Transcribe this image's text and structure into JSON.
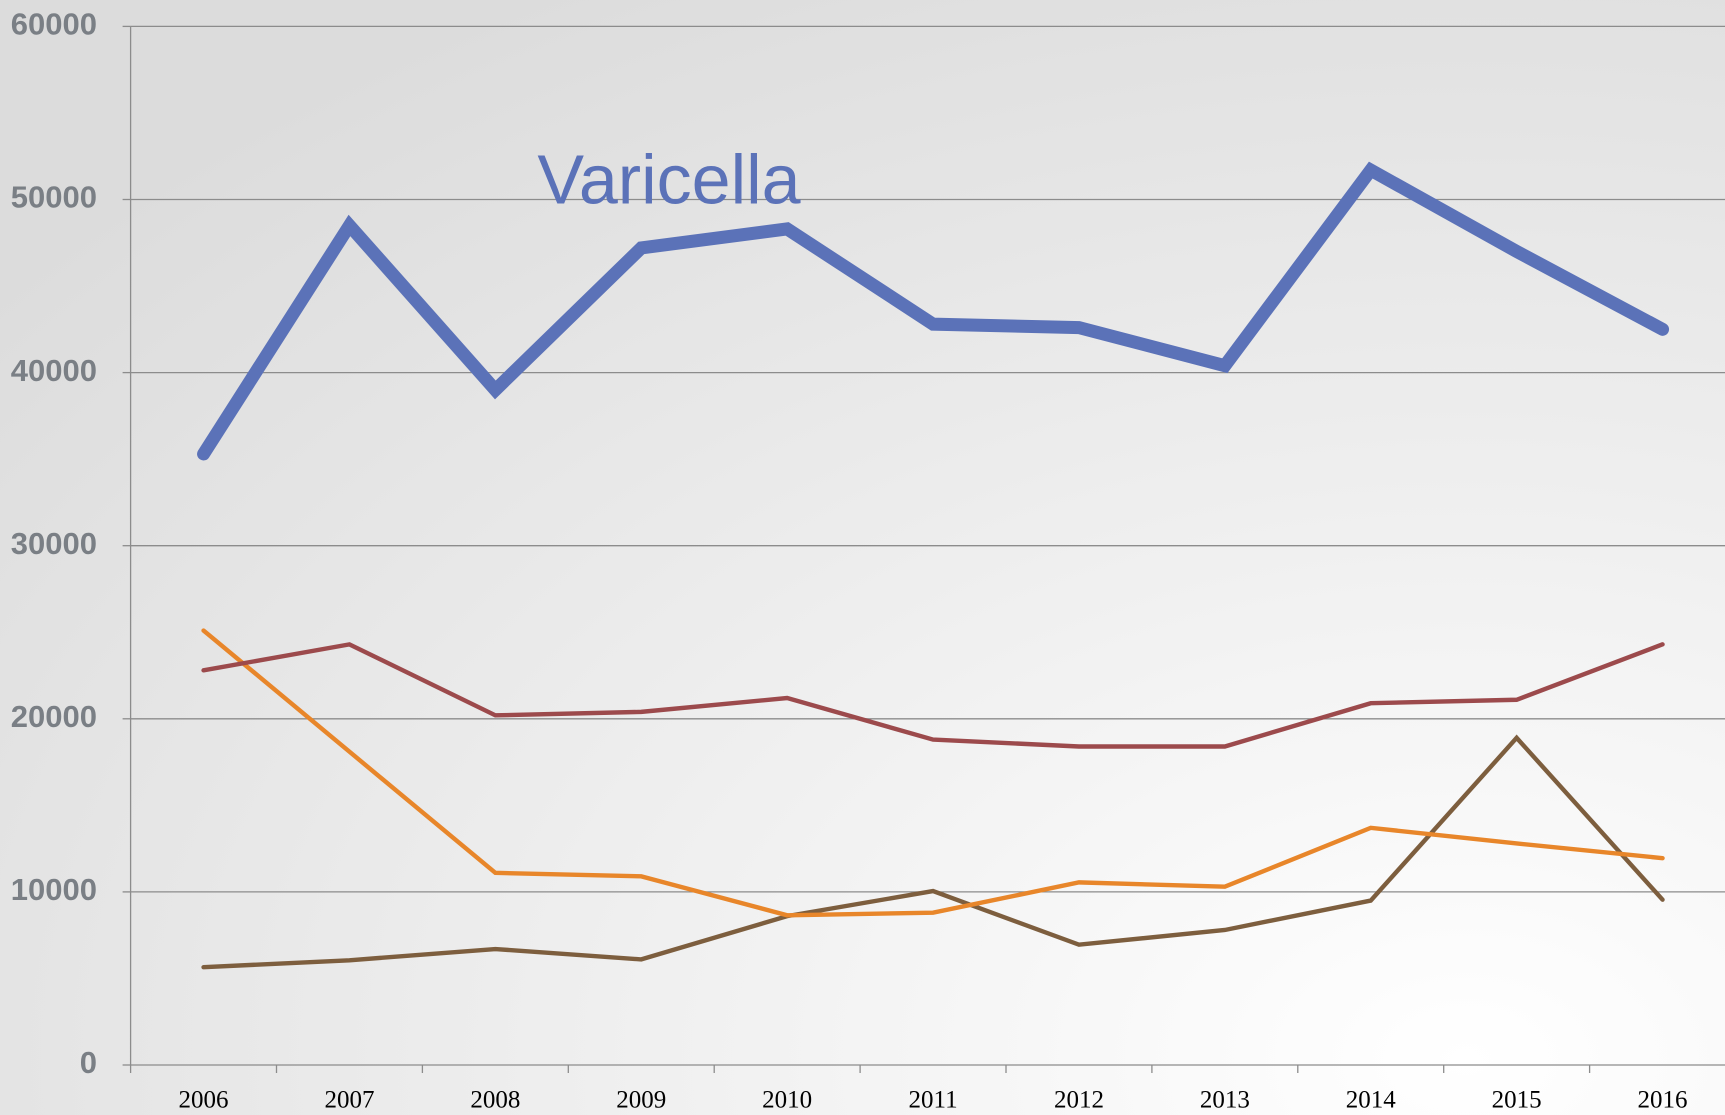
{
  "chart_data": {
    "type": "line",
    "categories": [
      "2006",
      "2007",
      "2008",
      "2009",
      "2010",
      "2011",
      "2012",
      "2013",
      "2014",
      "2015",
      "2016"
    ],
    "series": [
      {
        "name": "Varicella",
        "color": "#5b72b8",
        "values": [
          35300,
          48500,
          39000,
          47200,
          48300,
          42800,
          42600,
          40400,
          51700,
          47000,
          42500
        ]
      },
      {
        "color": "#9c4a4c",
        "values": [
          22800,
          24300,
          20200,
          20400,
          21200,
          18800,
          18400,
          18400,
          20900,
          21100,
          24300
        ]
      },
      {
        "color": "#e8862a",
        "values": [
          25100,
          18100,
          11100,
          10900,
          8650,
          8800,
          10550,
          10300,
          13700,
          12800,
          11950
        ]
      },
      {
        "color": "#7d5e3e",
        "values": [
          5650,
          6050,
          6700,
          6100,
          8600,
          10050,
          6950,
          7800,
          9500,
          18900,
          9550
        ]
      }
    ],
    "ylim": [
      0,
      60000
    ],
    "yticks": [
      0,
      10000,
      20000,
      30000,
      40000,
      50000,
      60000
    ],
    "grid": true
  }
}
